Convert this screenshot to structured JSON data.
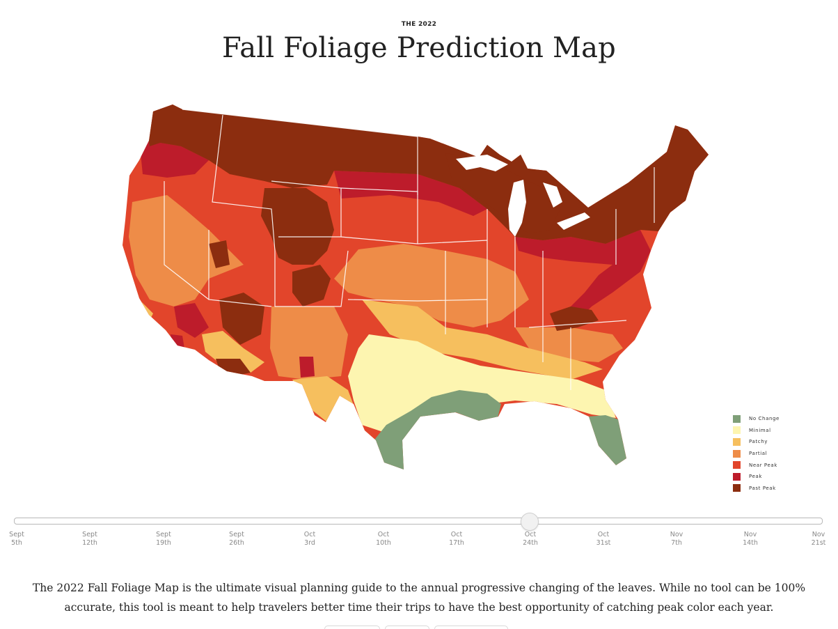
{
  "header": {
    "kicker": "THE 2022",
    "title": "Fall Foliage Prediction Map"
  },
  "legend": {
    "items": [
      {
        "label": "No Change",
        "color": "#7f9f78"
      },
      {
        "label": "Minimal",
        "color": "#fdf5b0"
      },
      {
        "label": "Patchy",
        "color": "#f6bf5e"
      },
      {
        "label": "Partial",
        "color": "#ee8c48"
      },
      {
        "label": "Near Peak",
        "color": "#e2452b"
      },
      {
        "label": "Peak",
        "color": "#bd1c2b"
      },
      {
        "label": "Past Peak",
        "color": "#8c2d0f"
      }
    ]
  },
  "timeline": {
    "selected_index": 7,
    "ticks": [
      {
        "month": "Sept",
        "day": "5th"
      },
      {
        "month": "Sept",
        "day": "12th"
      },
      {
        "month": "Sept",
        "day": "19th"
      },
      {
        "month": "Sept",
        "day": "26th"
      },
      {
        "month": "Oct",
        "day": "3rd"
      },
      {
        "month": "Oct",
        "day": "10th"
      },
      {
        "month": "Oct",
        "day": "17th"
      },
      {
        "month": "Oct",
        "day": "24th"
      },
      {
        "month": "Oct",
        "day": "31st"
      },
      {
        "month": "Nov",
        "day": "7th"
      },
      {
        "month": "Nov",
        "day": "14th"
      },
      {
        "month": "Nov",
        "day": "21st"
      }
    ]
  },
  "description": "The 2022 Fall Foliage Map is the ultimate visual planning guide to the annual progressive changing of the leaves. While no tool can be 100% accurate, this tool is meant to help travelers better time their trips to have the best opportunity of catching peak color each year."
}
